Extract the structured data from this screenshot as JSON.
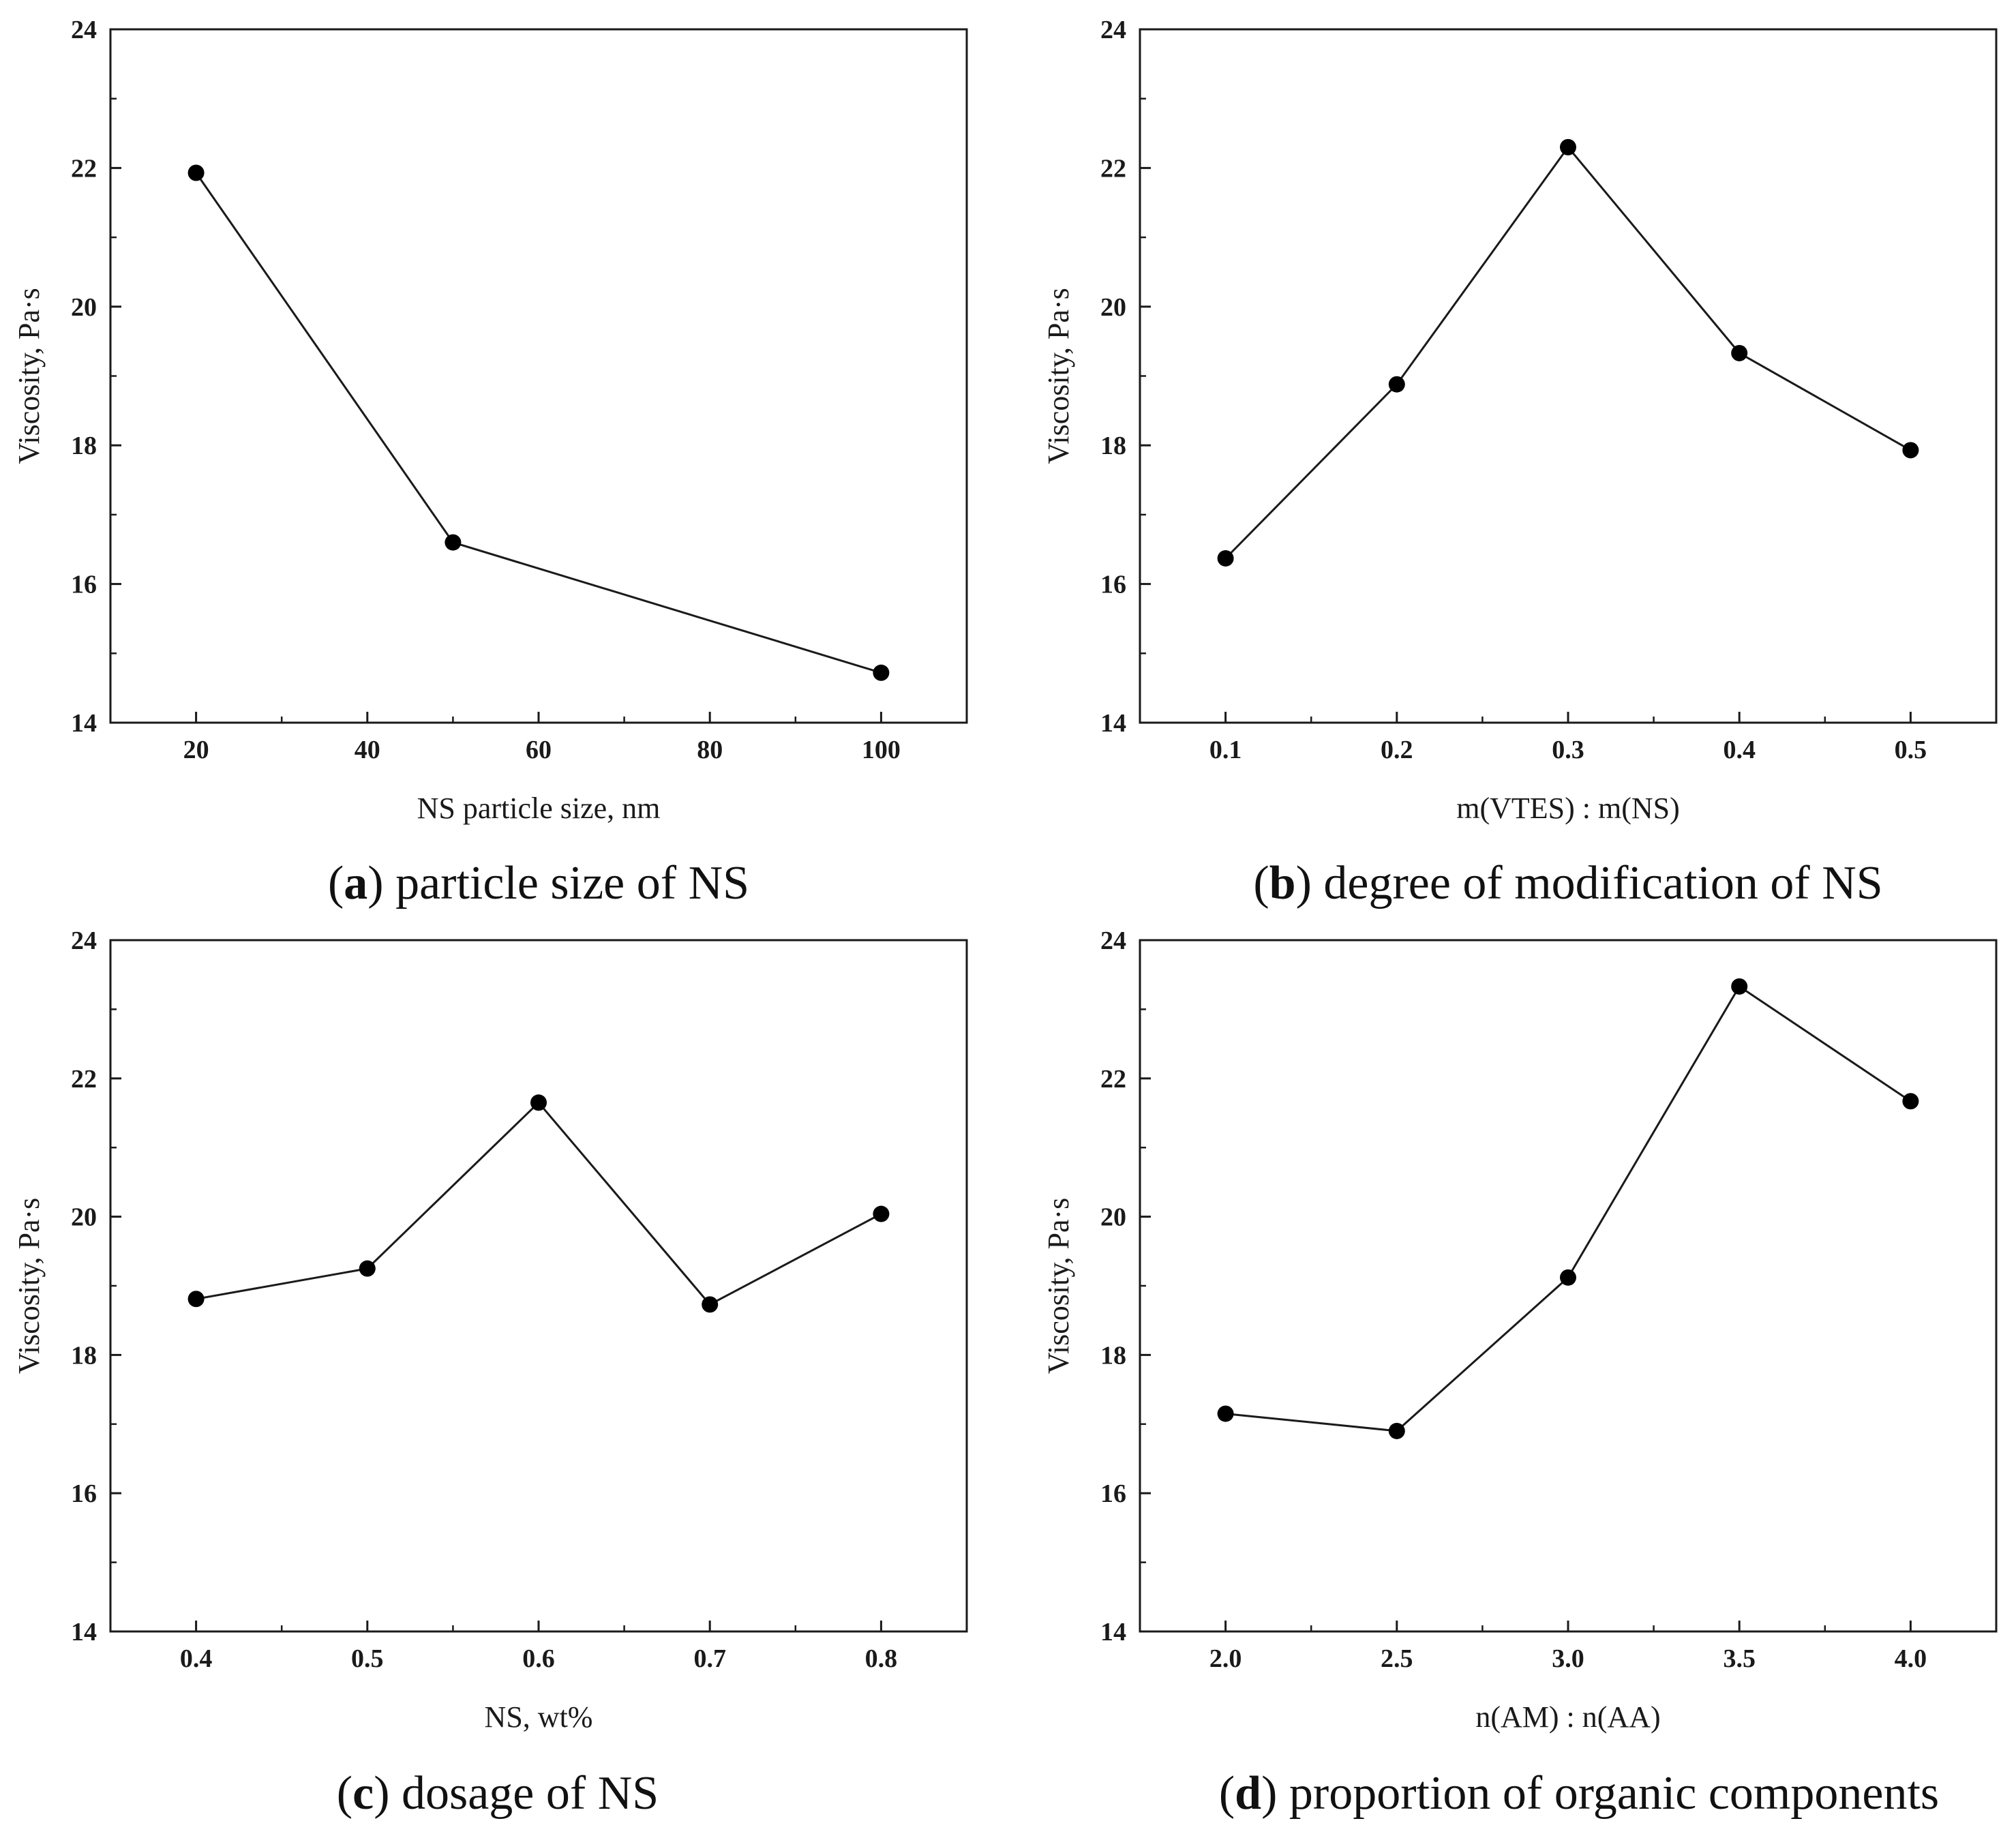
{
  "colors": {
    "line": "#1a1a1a",
    "marker": "#000000",
    "frame": "#1a1a1a",
    "background": "#ffffff"
  },
  "chart_data": [
    {
      "type": "line",
      "panel_letter": "a",
      "caption": "particle size of NS",
      "xlabel": "NS particle size, nm",
      "ylabel": "Viscosity, Pa·s",
      "xlim": [
        10,
        110
      ],
      "ylim": [
        14,
        24
      ],
      "xticks": [
        20,
        40,
        60,
        80,
        100
      ],
      "xtick_labels": [
        "20",
        "40",
        "60",
        "80",
        "100"
      ],
      "yticks": [
        14,
        16,
        18,
        20,
        22,
        24
      ],
      "ytick_labels": [
        "14",
        "16",
        "18",
        "20",
        "22",
        "24"
      ],
      "x": [
        20,
        50,
        100
      ],
      "y": [
        21.93,
        16.6,
        14.72
      ]
    },
    {
      "type": "line",
      "panel_letter": "b",
      "caption": "degree of modification of NS",
      "xlabel": "m(VTES) : m(NS)",
      "ylabel": "Viscosity, Pa·s",
      "xlim": [
        0.05,
        0.55
      ],
      "ylim": [
        14,
        24
      ],
      "xticks": [
        0.1,
        0.2,
        0.3,
        0.4,
        0.5
      ],
      "xtick_labels": [
        "0.1",
        "0.2",
        "0.3",
        "0.4",
        "0.5"
      ],
      "yticks": [
        14,
        16,
        18,
        20,
        22,
        24
      ],
      "ytick_labels": [
        "14",
        "16",
        "18",
        "20",
        "22",
        "24"
      ],
      "x": [
        0.1,
        0.2,
        0.3,
        0.4,
        0.5
      ],
      "y": [
        16.37,
        18.88,
        22.3,
        19.33,
        17.93
      ]
    },
    {
      "type": "line",
      "panel_letter": "c",
      "caption": "dosage of NS",
      "xlabel": "NS, wt%",
      "ylabel": "Viscosity, Pa·s",
      "xlim": [
        0.35,
        0.85
      ],
      "ylim": [
        14,
        24
      ],
      "xticks": [
        0.4,
        0.5,
        0.6,
        0.7,
        0.8
      ],
      "xtick_labels": [
        "0.4",
        "0.5",
        "0.6",
        "0.7",
        "0.8"
      ],
      "yticks": [
        14,
        16,
        18,
        20,
        22,
        24
      ],
      "ytick_labels": [
        "14",
        "16",
        "18",
        "20",
        "22",
        "24"
      ],
      "x": [
        0.4,
        0.5,
        0.6,
        0.7,
        0.8
      ],
      "y": [
        18.81,
        19.25,
        21.65,
        18.73,
        20.04
      ]
    },
    {
      "type": "line",
      "panel_letter": "d",
      "caption": "proportion of organic components",
      "xlabel": "n(AM) : n(AA)",
      "ylabel": "Viscosity, Pa·s",
      "xlim": [
        1.75,
        4.25
      ],
      "ylim": [
        14,
        24
      ],
      "xticks": [
        2.0,
        2.5,
        3.0,
        3.5,
        4.0
      ],
      "xtick_labels": [
        "2.0",
        "2.5",
        "3.0",
        "3.5",
        "4.0"
      ],
      "yticks": [
        14,
        16,
        18,
        20,
        22,
        24
      ],
      "ytick_labels": [
        "14",
        "16",
        "18",
        "20",
        "22",
        "24"
      ],
      "x": [
        2.0,
        2.5,
        3.0,
        3.5,
        4.0
      ],
      "y": [
        17.15,
        16.9,
        19.12,
        23.33,
        21.67
      ]
    }
  ]
}
